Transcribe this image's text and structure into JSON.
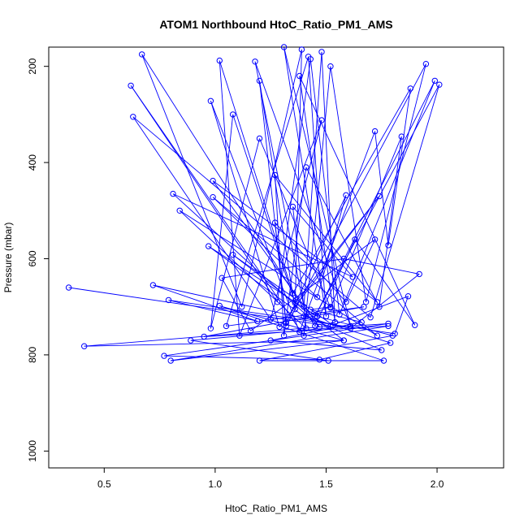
{
  "chart_data": {
    "type": "line",
    "title": "ATOM1 Northbound HtoC_Ratio_PM1_AMS",
    "xlabel": "HtoC_Ratio_PM1_AMS",
    "ylabel": "Pressure (mbar)",
    "xlim": [
      0.25,
      2.3
    ],
    "ylim": [
      1035,
      160
    ],
    "y_reversed": true,
    "x_ticks": [
      0.5,
      1.0,
      1.5,
      2.0
    ],
    "x_tick_labels": [
      "0.5",
      "1.0",
      "1.5",
      "2.0"
    ],
    "y_ticks": [
      200,
      400,
      600,
      800,
      1000
    ],
    "y_tick_labels": [
      "200",
      "400",
      "600",
      "800",
      "1000"
    ],
    "grid": false,
    "legend": "none",
    "line_color": "#0000ff",
    "marker": "open-circle",
    "series": [
      {
        "points": [
          [
            0.34,
            660
          ],
          [
            1.52,
            740
          ],
          [
            0.41,
            782
          ],
          [
            1.58,
            770
          ],
          [
            0.8,
            812
          ],
          [
            1.78,
            740
          ],
          [
            0.95,
            762
          ],
          [
            1.67,
            700
          ],
          [
            1.05,
            740
          ],
          [
            1.42,
            180
          ],
          [
            1.5,
            720
          ],
          [
            1.31,
            160
          ],
          [
            1.61,
            740
          ],
          [
            1.18,
            190
          ],
          [
            1.4,
            700
          ],
          [
            1.48,
            170
          ],
          [
            1.54,
            732
          ],
          [
            1.38,
            220
          ],
          [
            1.9,
            738
          ],
          [
            1.63,
            560
          ],
          [
            1.45,
            740
          ],
          [
            0.67,
            175
          ],
          [
            1.12,
            700
          ],
          [
            1.39,
            165
          ],
          [
            1.36,
            705
          ],
          [
            1.2,
            230
          ],
          [
            1.32,
            740
          ],
          [
            1.95,
            195
          ],
          [
            1.68,
            690
          ],
          [
            1.52,
            200
          ],
          [
            1.4,
            760
          ],
          [
            0.62,
            240
          ],
          [
            1.28,
            690
          ],
          [
            1.43,
            185
          ],
          [
            1.56,
            716
          ],
          [
            1.99,
            230
          ],
          [
            1.45,
            720
          ],
          [
            2.01,
            238
          ],
          [
            1.7,
            722
          ],
          [
            0.63,
            305
          ],
          [
            1.25,
            726
          ],
          [
            1.48,
            312
          ],
          [
            1.11,
            760
          ],
          [
            1.02,
            188
          ],
          [
            1.35,
            672
          ],
          [
            1.88,
            246
          ],
          [
            1.78,
            572
          ],
          [
            1.72,
            335
          ],
          [
            1.38,
            752
          ],
          [
            0.98,
            272
          ],
          [
            1.29,
            742
          ],
          [
            1.74,
            470
          ],
          [
            1.36,
            692
          ],
          [
            1.08,
            300
          ],
          [
            0.98,
            745
          ],
          [
            1.2,
            350
          ],
          [
            1.52,
            702
          ],
          [
            1.84,
            346
          ],
          [
            1.74,
            700
          ],
          [
            1.41,
            410
          ],
          [
            1.31,
            760
          ],
          [
            1.27,
            426
          ],
          [
            1.73,
            690
          ],
          [
            0.99,
            438
          ],
          [
            1.47,
            742
          ],
          [
            0.81,
            465
          ],
          [
            1.62,
            638
          ],
          [
            1.35,
            492
          ],
          [
            1.41,
            745
          ],
          [
            0.84,
            500
          ],
          [
            1.73,
            760
          ],
          [
            0.99,
            472
          ],
          [
            1.46,
            680
          ],
          [
            1.59,
            468
          ],
          [
            1.32,
            734
          ],
          [
            1.27,
            525
          ],
          [
            1.59,
            690
          ],
          [
            1.72,
            560
          ],
          [
            1.16,
            750
          ],
          [
            1.03,
            640
          ],
          [
            1.58,
            600
          ],
          [
            1.92,
            632
          ],
          [
            1.61,
            745
          ],
          [
            0.72,
            655
          ],
          [
            1.19,
            730
          ],
          [
            0.79,
            686
          ],
          [
            1.81,
            756
          ],
          [
            1.87,
            678
          ],
          [
            1.53,
            738
          ],
          [
            1.08,
            592
          ],
          [
            1.58,
            770
          ],
          [
            1.02,
            698
          ],
          [
            1.76,
            812
          ],
          [
            1.2,
            812
          ],
          [
            1.8,
            760
          ],
          [
            1.46,
            720
          ],
          [
            0.97,
            574
          ],
          [
            1.4,
            720
          ],
          [
            1.52,
            700
          ],
          [
            1.43,
            706
          ],
          [
            1.66,
            732
          ],
          [
            1.25,
            770
          ],
          [
            1.75,
            790
          ],
          [
            1.41,
            720
          ],
          [
            1.53,
            738
          ],
          [
            1.79,
            775
          ],
          [
            1.47,
            810
          ],
          [
            0.77,
            802
          ],
          [
            1.78,
            735
          ],
          [
            1.61,
            740
          ],
          [
            0.89,
            770
          ],
          [
            1.51,
            812
          ]
        ]
      }
    ]
  }
}
